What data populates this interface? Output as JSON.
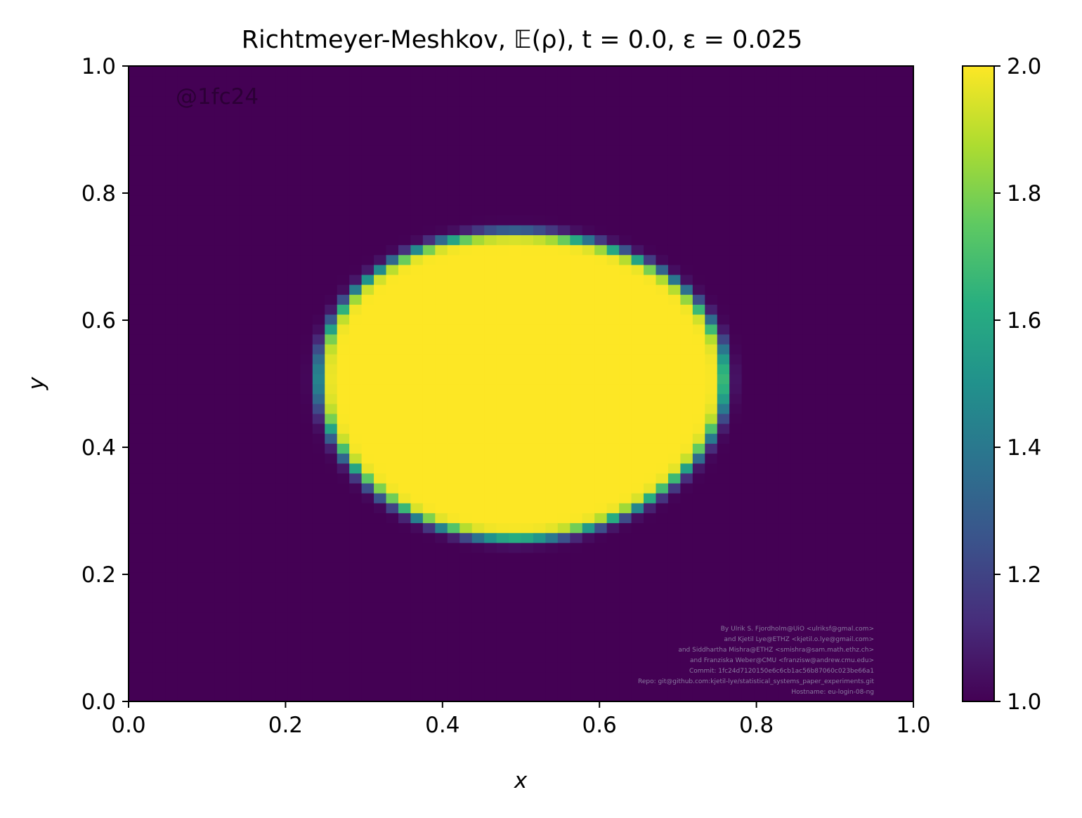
{
  "chart_data": {
    "type": "heatmap",
    "title": "Richtmeyer-Meshkov, 𝔼(ρ), t = 0.0, ε = 0.025",
    "xlabel": "x",
    "ylabel": "y",
    "xlim": [
      0.0,
      1.0
    ],
    "ylim": [
      0.0,
      1.0
    ],
    "x_ticks": [
      "0.0",
      "0.2",
      "0.4",
      "0.6",
      "0.8",
      "1.0"
    ],
    "y_ticks": [
      "0.0",
      "0.2",
      "0.4",
      "0.6",
      "0.8",
      "1.0"
    ],
    "colorbar": {
      "range": [
        1.0,
        2.0
      ],
      "ticks": [
        "1.0",
        "1.2",
        "1.4",
        "1.6",
        "1.8",
        "2.0"
      ],
      "colormap": "viridis"
    },
    "field": {
      "grid_size": 64,
      "background_value": 1.0,
      "inner_value": 2.0,
      "bubble_center": [
        0.5,
        0.5
      ],
      "bubble_radius": 0.25,
      "perturbation_scale": 0.025
    },
    "grid": false
  },
  "watermark": "@1fc24",
  "credits": [
    "By Ulrik S. Fjordholm@UiO <ulriksf@gmal.com>",
    "and Kjetil Lye@ETHZ <kjetil.o.lye@gmail.com>",
    "and Siddhartha Mishra@ETHZ <smishra@sam.math.ethz.ch>",
    "and Franziska Weber@CMU <franzisw@andrew.cmu.edu>",
    "Commit: 1fc24d7120150e6c6cb1ac56b87060c023be66a1",
    "Repo: git@github.com:kjetil-lye/statistical_systems_paper_experiments.git",
    "Hostname: eu-login-08-ng"
  ]
}
